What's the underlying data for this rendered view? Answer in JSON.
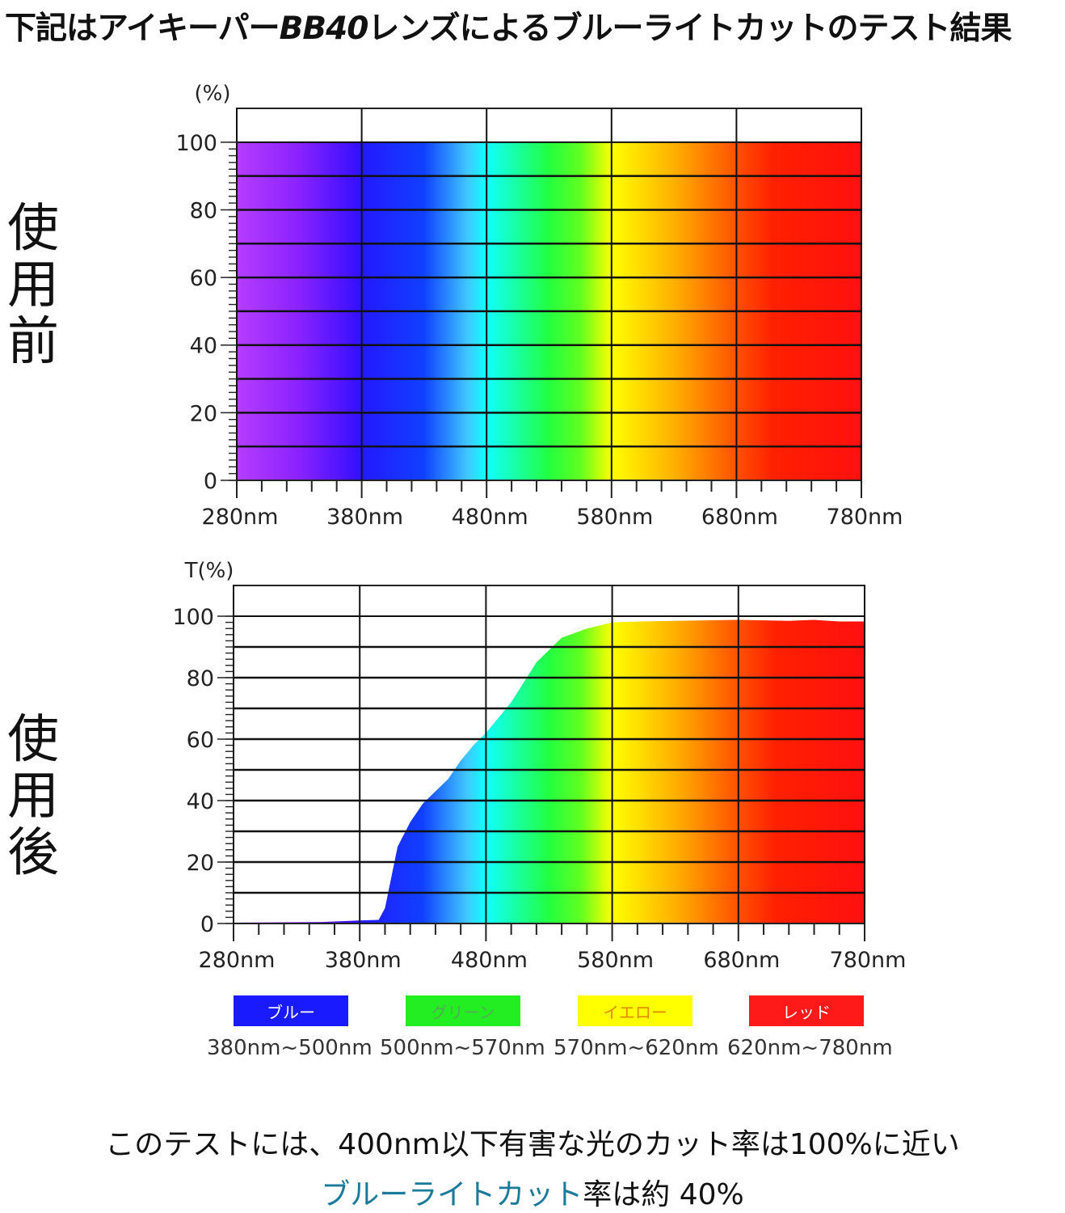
{
  "headline": {
    "prefix": "下記はアイキーパー",
    "model": "BB40",
    "suffix": "レンズによるブルーライトカットのテスト結果"
  },
  "side_labels": {
    "before": [
      "使",
      "用",
      "前"
    ],
    "after": [
      "使",
      "用",
      "後"
    ]
  },
  "legend": [
    {
      "label": "ブルー",
      "range": "380nm~500nm",
      "color": "#1a1aff",
      "text_color": "#ffffff"
    },
    {
      "label": "グリーン",
      "range": "500nm~570nm",
      "color": "#22ee22",
      "text_color": "#55aa55"
    },
    {
      "label": "イエロー",
      "range": "570nm~620nm",
      "color": "#ffff00",
      "text_color": "#e08a00"
    },
    {
      "label": "レッド",
      "range": "620nm~780nm",
      "color": "#ff1a1a",
      "text_color": "#ffffff"
    }
  ],
  "footer": {
    "line1": "このテストには、400nm以下有害な光のカット率は100%に近い",
    "line2_accent": "ブルーライトカット",
    "line2_rest": "率は約 40%"
  },
  "chart_data": [
    {
      "type": "area",
      "ylabel": "(%)",
      "x_tick_labels": [
        "280nm",
        "380nm",
        "480nm",
        "580nm",
        "680nm",
        "780nm"
      ],
      "y_tick_labels": [
        "0",
        "20",
        "40",
        "60",
        "80",
        "100"
      ],
      "xlim": [
        280,
        780
      ],
      "ylim": [
        0,
        110
      ],
      "grid": true,
      "x": [
        280,
        780
      ],
      "y": [
        100,
        100
      ]
    },
    {
      "type": "area",
      "ylabel": "T(%)",
      "x_tick_labels": [
        "280nm",
        "380nm",
        "480nm",
        "580nm",
        "680nm",
        "780nm"
      ],
      "y_tick_labels": [
        "0",
        "20",
        "40",
        "60",
        "80",
        "100"
      ],
      "xlim": [
        280,
        780
      ],
      "ylim": [
        0,
        110
      ],
      "grid": true,
      "x": [
        280,
        350,
        380,
        395,
        400,
        405,
        410,
        420,
        430,
        450,
        460,
        470,
        480,
        500,
        520,
        540,
        560,
        580,
        600,
        680,
        720,
        740,
        760,
        780
      ],
      "y": [
        0.3,
        0.5,
        1.0,
        1.2,
        5,
        15,
        25,
        33,
        39,
        47,
        53,
        58,
        62,
        72,
        85,
        93,
        96,
        98,
        98.3,
        98.8,
        98.5,
        98.8,
        98.3,
        98.3
      ]
    }
  ]
}
